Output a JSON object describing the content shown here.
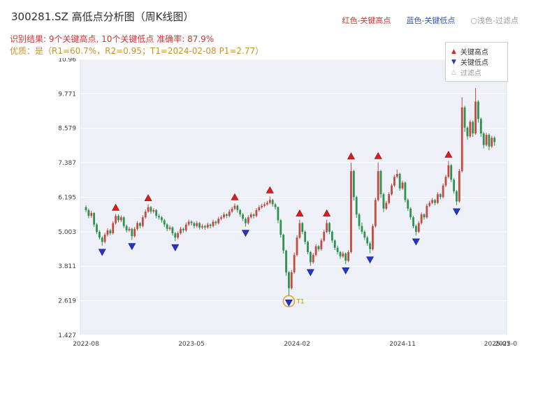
{
  "header": {
    "title": "300281.SZ 高低点分析图（周K线图）",
    "legend_inline": [
      {
        "name": "key-high",
        "label": "红色-关键高点",
        "color": "#cc3333"
      },
      {
        "name": "key-low",
        "label": "蓝色-关键低点",
        "color": "#3355aa"
      },
      {
        "name": "filtered",
        "label": "○浅色-过滤点",
        "color": "#999999"
      }
    ],
    "result_line": "识别结果: 9个关键高点, 10个关键低点  准确率: 87.9%",
    "quality_line": "优质：是（R1=60.7%，R2=0.95；T1=2024-02-08 P1=2.77）"
  },
  "legend_box": {
    "items": [
      {
        "name": "key-high",
        "symbol": "▲",
        "label": "关键高点",
        "color": "#d62728",
        "text_color": "#333333"
      },
      {
        "name": "key-low",
        "symbol": "▼",
        "label": "关键低点",
        "color": "#2a35b0",
        "text_color": "#333333"
      },
      {
        "name": "filtered",
        "symbol": "△",
        "label": "过滤点",
        "color": "#aaaaaa",
        "text_color": "#999999"
      }
    ]
  },
  "chart_data": {
    "type": "candlestick",
    "symbol": "300281.SZ",
    "interval": "weekly",
    "title": "300281.SZ 高低点分析图（周K线图）",
    "ylim": [
      1.427,
      10.96
    ],
    "y_ticks": [
      1.427,
      2.619,
      3.811,
      5.003,
      6.195,
      7.387,
      8.579,
      9.771,
      10.96
    ],
    "x_ticks": [
      {
        "week": 0,
        "label": "2022-08"
      },
      {
        "week": 39,
        "label": "2023-05"
      },
      {
        "week": 78,
        "label": "2024-02"
      },
      {
        "week": 117,
        "label": "2024-11"
      },
      {
        "week": 152,
        "label": "2025-07"
      },
      {
        "week": 156,
        "label": "2025-08"
      }
    ],
    "up_color": "#c14a42",
    "down_color": "#2e9150",
    "key_high_color": "#e31a1a",
    "key_low_color": "#2733c9",
    "t1_color": "#e2a13c",
    "key_high_weeks": [
      11,
      23,
      55,
      68,
      79,
      89,
      98,
      108,
      134
    ],
    "key_low_weeks": [
      6,
      17,
      33,
      59,
      75,
      83,
      96,
      105,
      122,
      137
    ],
    "t1": {
      "week": 75,
      "label": "T1",
      "price": 2.77,
      "date": "2024-02-08"
    },
    "candles": [
      [
        5.85,
        5.92,
        5.68,
        5.75
      ],
      [
        5.75,
        5.8,
        5.47,
        5.55
      ],
      [
        5.55,
        5.73,
        5.48,
        5.65
      ],
      [
        5.65,
        5.68,
        5.17,
        5.25
      ],
      [
        5.25,
        5.3,
        4.92,
        5.0
      ],
      [
        5.0,
        5.06,
        4.73,
        4.8
      ],
      [
        4.8,
        4.85,
        4.52,
        4.65
      ],
      [
        4.65,
        4.97,
        4.6,
        4.9
      ],
      [
        4.9,
        5.12,
        4.84,
        5.05
      ],
      [
        5.05,
        5.1,
        4.88,
        4.95
      ],
      [
        4.95,
        5.37,
        4.9,
        5.3
      ],
      [
        5.3,
        5.62,
        5.25,
        5.55
      ],
      [
        5.55,
        5.6,
        5.33,
        5.4
      ],
      [
        5.4,
        5.57,
        5.34,
        5.5
      ],
      [
        5.5,
        5.54,
        5.13,
        5.2
      ],
      [
        5.2,
        5.25,
        4.98,
        5.05
      ],
      [
        5.05,
        5.17,
        4.99,
        5.1
      ],
      [
        5.1,
        5.14,
        4.72,
        4.85
      ],
      [
        4.85,
        5.17,
        4.8,
        5.1
      ],
      [
        5.1,
        5.37,
        5.04,
        5.3
      ],
      [
        5.3,
        5.34,
        5.12,
        5.2
      ],
      [
        5.2,
        5.57,
        5.15,
        5.5
      ],
      [
        5.5,
        5.77,
        5.45,
        5.7
      ],
      [
        5.7,
        5.95,
        5.65,
        5.85
      ],
      [
        5.85,
        5.89,
        5.62,
        5.7
      ],
      [
        5.7,
        5.82,
        5.64,
        5.75
      ],
      [
        5.75,
        5.79,
        5.47,
        5.55
      ],
      [
        5.55,
        5.61,
        5.42,
        5.5
      ],
      [
        5.5,
        5.55,
        5.32,
        5.4
      ],
      [
        5.4,
        5.45,
        5.17,
        5.25
      ],
      [
        5.25,
        5.3,
        5.02,
        5.1
      ],
      [
        5.1,
        5.22,
        5.04,
        5.15
      ],
      [
        5.15,
        5.19,
        4.87,
        4.95
      ],
      [
        4.95,
        5.0,
        4.68,
        4.8
      ],
      [
        4.8,
        5.02,
        4.74,
        4.95
      ],
      [
        4.95,
        5.17,
        4.9,
        5.1
      ],
      [
        5.1,
        5.15,
        4.97,
        5.05
      ],
      [
        5.05,
        5.32,
        5.0,
        5.25
      ],
      [
        5.25,
        5.42,
        5.2,
        5.35
      ],
      [
        5.35,
        5.4,
        5.22,
        5.3
      ],
      [
        5.3,
        5.35,
        5.12,
        5.2
      ],
      [
        5.2,
        5.37,
        5.14,
        5.3
      ],
      [
        5.3,
        5.34,
        5.08,
        5.15
      ],
      [
        5.15,
        5.27,
        5.09,
        5.2
      ],
      [
        5.2,
        5.24,
        5.07,
        5.15
      ],
      [
        5.15,
        5.32,
        5.1,
        5.25
      ],
      [
        5.25,
        5.29,
        5.12,
        5.2
      ],
      [
        5.2,
        5.42,
        5.15,
        5.35
      ],
      [
        5.35,
        5.39,
        5.22,
        5.3
      ],
      [
        5.3,
        5.52,
        5.25,
        5.45
      ],
      [
        5.45,
        5.57,
        5.4,
        5.5
      ],
      [
        5.5,
        5.67,
        5.45,
        5.6
      ],
      [
        5.6,
        5.64,
        5.47,
        5.55
      ],
      [
        5.55,
        5.77,
        5.5,
        5.7
      ],
      [
        5.7,
        5.87,
        5.65,
        5.8
      ],
      [
        5.8,
        5.98,
        5.75,
        5.9
      ],
      [
        5.9,
        5.94,
        5.67,
        5.75
      ],
      [
        5.75,
        5.8,
        5.52,
        5.6
      ],
      [
        5.6,
        5.65,
        5.37,
        5.45
      ],
      [
        5.45,
        5.5,
        5.18,
        5.3
      ],
      [
        5.3,
        5.57,
        5.25,
        5.5
      ],
      [
        5.5,
        5.67,
        5.45,
        5.6
      ],
      [
        5.6,
        5.64,
        5.47,
        5.55
      ],
      [
        5.55,
        5.82,
        5.5,
        5.75
      ],
      [
        5.75,
        5.92,
        5.7,
        5.85
      ],
      [
        5.85,
        5.97,
        5.8,
        5.9
      ],
      [
        5.9,
        6.02,
        5.85,
        5.95
      ],
      [
        5.95,
        6.07,
        5.9,
        6.0
      ],
      [
        6.0,
        6.22,
        5.95,
        6.1
      ],
      [
        6.1,
        6.14,
        5.87,
        5.95
      ],
      [
        5.95,
        6.0,
        5.77,
        5.85
      ],
      [
        5.85,
        5.88,
        5.3,
        5.4
      ],
      [
        5.4,
        5.44,
        4.8,
        4.9
      ],
      [
        4.9,
        4.93,
        4.25,
        4.35
      ],
      [
        4.35,
        4.38,
        3.48,
        3.6
      ],
      [
        3.6,
        3.64,
        2.77,
        3.05
      ],
      [
        3.05,
        3.68,
        3.0,
        3.6
      ],
      [
        3.6,
        4.28,
        3.55,
        4.2
      ],
      [
        4.2,
        4.88,
        4.15,
        4.8
      ],
      [
        4.8,
        5.42,
        4.75,
        5.3
      ],
      [
        5.3,
        5.34,
        4.92,
        5.0
      ],
      [
        5.0,
        5.05,
        4.57,
        4.65
      ],
      [
        4.65,
        4.69,
        4.22,
        4.3
      ],
      [
        4.3,
        4.34,
        3.82,
        3.95
      ],
      [
        3.95,
        4.27,
        3.9,
        4.2
      ],
      [
        4.2,
        4.57,
        4.15,
        4.5
      ],
      [
        4.5,
        4.54,
        4.32,
        4.4
      ],
      [
        4.4,
        4.77,
        4.35,
        4.7
      ],
      [
        4.7,
        5.07,
        4.65,
        5.0
      ],
      [
        5.0,
        5.42,
        4.95,
        5.3
      ],
      [
        5.3,
        5.34,
        4.92,
        5.0
      ],
      [
        5.0,
        5.05,
        4.62,
        4.7
      ],
      [
        4.7,
        4.74,
        4.37,
        4.45
      ],
      [
        4.45,
        4.52,
        4.22,
        4.3
      ],
      [
        4.3,
        4.34,
        4.07,
        4.15
      ],
      [
        4.15,
        4.32,
        4.1,
        4.25
      ],
      [
        4.25,
        4.29,
        3.88,
        4.0
      ],
      [
        4.0,
        4.37,
        3.95,
        4.3
      ],
      [
        4.3,
        7.39,
        4.25,
        7.1
      ],
      [
        7.1,
        7.15,
        6.08,
        6.2
      ],
      [
        6.2,
        6.25,
        5.48,
        5.6
      ],
      [
        5.6,
        5.65,
        5.08,
        5.2
      ],
      [
        5.2,
        5.32,
        4.92,
        5.0
      ],
      [
        5.0,
        5.05,
        4.72,
        4.8
      ],
      [
        4.8,
        4.85,
        4.52,
        4.6
      ],
      [
        4.6,
        4.65,
        4.26,
        4.4
      ],
      [
        4.4,
        5.27,
        4.35,
        5.2
      ],
      [
        5.2,
        6.18,
        5.15,
        6.1
      ],
      [
        6.1,
        7.4,
        6.05,
        7.1
      ],
      [
        7.1,
        7.15,
        6.17,
        6.3
      ],
      [
        6.3,
        6.35,
        5.68,
        5.8
      ],
      [
        5.8,
        6.07,
        5.75,
        6.0
      ],
      [
        6.0,
        6.37,
        5.95,
        6.3
      ],
      [
        6.3,
        6.67,
        6.25,
        6.6
      ],
      [
        6.6,
        6.97,
        6.55,
        6.9
      ],
      [
        6.9,
        7.15,
        6.85,
        7.0
      ],
      [
        7.0,
        7.04,
        6.42,
        6.5
      ],
      [
        6.5,
        6.77,
        6.45,
        6.7
      ],
      [
        6.7,
        6.74,
        6.02,
        6.1
      ],
      [
        6.1,
        6.15,
        5.72,
        5.8
      ],
      [
        5.8,
        5.85,
        5.42,
        5.5
      ],
      [
        5.5,
        5.55,
        5.12,
        5.2
      ],
      [
        5.2,
        5.25,
        4.88,
        5.0
      ],
      [
        5.0,
        5.37,
        4.95,
        5.3
      ],
      [
        5.3,
        5.67,
        5.25,
        5.6
      ],
      [
        5.6,
        5.64,
        5.42,
        5.5
      ],
      [
        5.5,
        5.97,
        5.45,
        5.9
      ],
      [
        5.9,
        6.07,
        5.85,
        6.0
      ],
      [
        6.0,
        6.17,
        5.95,
        6.1
      ],
      [
        6.1,
        6.14,
        5.92,
        6.0
      ],
      [
        6.0,
        6.37,
        5.95,
        6.3
      ],
      [
        6.3,
        6.34,
        6.12,
        6.2
      ],
      [
        6.2,
        6.67,
        6.15,
        6.6
      ],
      [
        6.6,
        6.97,
        6.55,
        6.9
      ],
      [
        6.9,
        7.45,
        6.85,
        7.3
      ],
      [
        7.3,
        7.34,
        6.72,
        6.8
      ],
      [
        6.8,
        6.85,
        6.32,
        6.4
      ],
      [
        6.4,
        6.45,
        5.92,
        6.05
      ],
      [
        6.05,
        7.17,
        6.0,
        7.1
      ],
      [
        7.1,
        9.65,
        7.05,
        9.3
      ],
      [
        9.3,
        9.35,
        8.45,
        8.6
      ],
      [
        8.6,
        8.65,
        8.18,
        8.3
      ],
      [
        8.3,
        8.87,
        8.25,
        8.8
      ],
      [
        8.8,
        8.85,
        8.28,
        8.4
      ],
      [
        8.4,
        9.97,
        8.35,
        9.5
      ],
      [
        9.5,
        9.55,
        8.77,
        8.9
      ],
      [
        8.9,
        8.95,
        8.28,
        8.4
      ],
      [
        8.4,
        8.45,
        7.88,
        8.0
      ],
      [
        8.0,
        8.42,
        7.95,
        8.35
      ],
      [
        8.35,
        8.4,
        7.82,
        7.95
      ],
      [
        7.95,
        8.32,
        7.9,
        8.25
      ],
      [
        8.25,
        8.3,
        7.97,
        8.1
      ]
    ]
  }
}
